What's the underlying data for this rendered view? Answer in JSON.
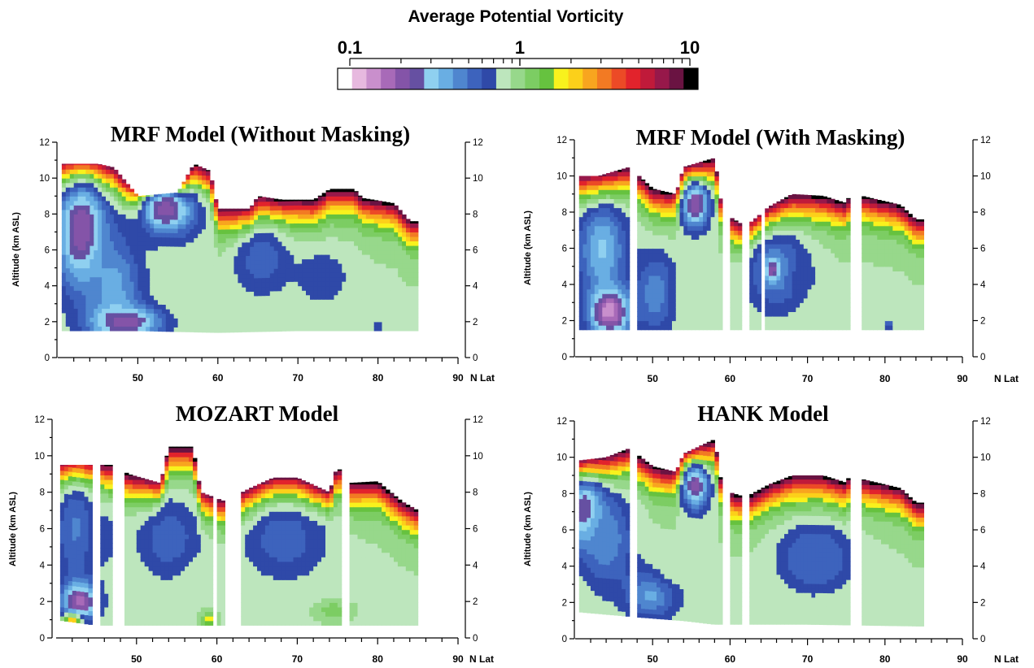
{
  "colorbar": {
    "title": "Average Potential Vorticity",
    "scale": "log",
    "tick_labels": [
      "0.1",
      "1",
      "10"
    ],
    "tick_values": [
      0.1,
      1,
      10
    ],
    "colors": [
      "#ffffff",
      "#e7b9df",
      "#c98fcc",
      "#a86ab8",
      "#8454a8",
      "#6650a2",
      "#8fd0f0",
      "#69aee3",
      "#4f86cf",
      "#3d63bd",
      "#2f49a8",
      "#bde6bd",
      "#97d88b",
      "#7ccd63",
      "#66c23f",
      "#f8f21d",
      "#fcd01a",
      "#f8a51f",
      "#f27a23",
      "#ec4a26",
      "#e2232c",
      "#c01a3a",
      "#97184a",
      "#6a1342",
      "#000000"
    ]
  },
  "chart_data": [
    {
      "type": "heatmap",
      "title": "MRF Model (Without Masking)",
      "xlabel": "N Lat",
      "ylabel": "Altitude (km ASL)",
      "xlim": [
        40,
        90
      ],
      "ylim": [
        0,
        12
      ],
      "xticks": [
        50,
        60,
        70,
        80,
        90
      ],
      "yticks": [
        0,
        2,
        4,
        6,
        8,
        10,
        12
      ],
      "legend": "none",
      "gaps": [],
      "surface": [
        [
          40,
          1.5
        ],
        [
          50,
          1.5
        ],
        [
          60,
          1.4
        ],
        [
          70,
          1.5
        ],
        [
          85,
          1.5
        ]
      ],
      "top": [
        [
          40,
          10.8
        ],
        [
          45,
          10.8
        ],
        [
          47,
          10.6
        ],
        [
          50,
          9.0
        ],
        [
          55,
          9.2
        ],
        [
          57,
          10.8
        ],
        [
          59,
          10.4
        ],
        [
          60,
          8.3
        ],
        [
          64,
          8.3
        ],
        [
          65,
          9.0
        ],
        [
          68,
          8.8
        ],
        [
          72,
          8.8
        ],
        [
          74,
          9.4
        ],
        [
          77,
          9.4
        ],
        [
          78,
          8.9
        ],
        [
          82,
          8.6
        ],
        [
          84,
          7.6
        ],
        [
          85,
          7.6
        ]
      ],
      "blobs": [
        {
          "lat": 43.0,
          "alt": 7.0,
          "rlat": 3.5,
          "ralt": 3.5,
          "pv": 0.2
        },
        {
          "lat": 47.0,
          "alt": 4.0,
          "rlat": 4.0,
          "ralt": 3.0,
          "pv": 0.4
        },
        {
          "lat": 53.5,
          "alt": 8.3,
          "rlat": 2.0,
          "ralt": 0.8,
          "pv": 0.12
        },
        {
          "lat": 53.5,
          "alt": 8.3,
          "rlat": 4.5,
          "ralt": 1.8,
          "pv": 0.25
        },
        {
          "lat": 48.5,
          "alt": 2.0,
          "rlat": 5.0,
          "ralt": 1.0,
          "pv": 0.22
        },
        {
          "lat": 65.5,
          "alt": 5.5,
          "rlat": 4.0,
          "ralt": 2.2,
          "pv": 0.55
        },
        {
          "lat": 73.0,
          "alt": 4.5,
          "rlat": 4.0,
          "ralt": 1.8,
          "pv": 0.65
        },
        {
          "lat": 59.0,
          "alt": 1.8,
          "rlat": 2.0,
          "ralt": 0.5,
          "pv": 0.85
        },
        {
          "lat": 80.0,
          "alt": 1.7,
          "rlat": 0.8,
          "ralt": 0.4,
          "pv": 0.6
        }
      ]
    },
    {
      "type": "heatmap",
      "title": "MRF Model (With Masking)",
      "xlabel": "N Lat",
      "ylabel": "Altitude (km ASL)",
      "xlim": [
        40,
        90
      ],
      "ylim": [
        0,
        12
      ],
      "xticks": [
        50,
        60,
        70,
        80,
        90
      ],
      "yticks": [
        0,
        2,
        4,
        6,
        8,
        10,
        12
      ],
      "legend": "none",
      "gaps": [
        [
          47.0,
          48.0
        ],
        [
          59.2,
          59.8
        ],
        [
          61.5,
          62.5
        ],
        [
          63.8,
          64.5
        ],
        [
          75.3,
          76.8
        ]
      ],
      "surface": [
        [
          40,
          1.5
        ],
        [
          50,
          1.5
        ],
        [
          60,
          1.5
        ],
        [
          70,
          1.5
        ],
        [
          85,
          1.5
        ]
      ],
      "top": [
        [
          40,
          10.0
        ],
        [
          43,
          10.0
        ],
        [
          47,
          10.5
        ],
        [
          50,
          9.3
        ],
        [
          53,
          9.0
        ],
        [
          54,
          10.5
        ],
        [
          58,
          11.0
        ],
        [
          59,
          8.0
        ],
        [
          62,
          7.2
        ],
        [
          65,
          8.3
        ],
        [
          68,
          9.0
        ],
        [
          72,
          8.9
        ],
        [
          75,
          8.5
        ],
        [
          76,
          9.6
        ],
        [
          77,
          8.9
        ],
        [
          82,
          8.4
        ],
        [
          84,
          7.6
        ],
        [
          85,
          7.6
        ]
      ],
      "blobs": [
        {
          "lat": 43.5,
          "alt": 6.0,
          "rlat": 3.5,
          "ralt": 3.0,
          "pv": 0.35
        },
        {
          "lat": 44.5,
          "alt": 2.5,
          "rlat": 3.0,
          "ralt": 1.5,
          "pv": 0.15
        },
        {
          "lat": 50.5,
          "alt": 3.5,
          "rlat": 3.0,
          "ralt": 2.5,
          "pv": 0.45
        },
        {
          "lat": 55.5,
          "alt": 8.5,
          "rlat": 2.0,
          "ralt": 1.5,
          "pv": 0.2
        },
        {
          "lat": 66.0,
          "alt": 4.8,
          "rlat": 4.5,
          "ralt": 2.5,
          "pv": 0.45
        },
        {
          "lat": 65.5,
          "alt": 4.8,
          "rlat": 1.0,
          "ralt": 0.7,
          "pv": 0.22
        },
        {
          "lat": 70.0,
          "alt": 4.5,
          "rlat": 2.5,
          "ralt": 1.0,
          "pv": 0.75
        },
        {
          "lat": 55.0,
          "alt": 3.0,
          "rlat": 3.0,
          "ralt": 1.5,
          "pv": 0.85
        },
        {
          "lat": 80.5,
          "alt": 1.8,
          "rlat": 0.7,
          "ralt": 0.3,
          "pv": 0.5
        }
      ]
    },
    {
      "type": "heatmap",
      "title": "MOZART Model",
      "xlabel": "N Lat",
      "ylabel": "Altitude (km ASL)",
      "xlim": [
        40,
        90
      ],
      "ylim": [
        0,
        12
      ],
      "xticks": [
        50,
        60,
        70,
        80,
        90
      ],
      "yticks": [
        0,
        2,
        4,
        6,
        8,
        10,
        12
      ],
      "legend": "none",
      "gaps": [
        [
          44.6,
          45.4
        ],
        [
          47.2,
          48.6
        ],
        [
          59.5,
          59.9
        ],
        [
          61.0,
          63.2
        ],
        [
          75.5,
          76.5
        ]
      ],
      "surface": [
        [
          40,
          1.0
        ],
        [
          45,
          0.7
        ],
        [
          50,
          0.7
        ],
        [
          60,
          0.7
        ],
        [
          70,
          0.7
        ],
        [
          85,
          0.7
        ]
      ],
      "top": [
        [
          40,
          9.5
        ],
        [
          44,
          9.5
        ],
        [
          47,
          9.5
        ],
        [
          49,
          9.0
        ],
        [
          53,
          8.5
        ],
        [
          54,
          10.5
        ],
        [
          57,
          10.5
        ],
        [
          58,
          8.0
        ],
        [
          61,
          7.5
        ],
        [
          64,
          8.2
        ],
        [
          67,
          8.8
        ],
        [
          70,
          8.8
        ],
        [
          74,
          8.0
        ],
        [
          75,
          9.5
        ],
        [
          76,
          8.5
        ],
        [
          80,
          8.6
        ],
        [
          83,
          7.5
        ],
        [
          85,
          7.0
        ]
      ],
      "blobs": [
        {
          "lat": 42.5,
          "alt": 6.0,
          "rlat": 3.0,
          "ralt": 3.5,
          "pv": 0.5
        },
        {
          "lat": 43.0,
          "alt": 2.0,
          "rlat": 2.5,
          "ralt": 1.2,
          "pv": 0.18
        },
        {
          "lat": 46.0,
          "alt": 5.5,
          "rlat": 2.5,
          "ralt": 2.0,
          "pv": 0.7
        },
        {
          "lat": 54.0,
          "alt": 5.5,
          "rlat": 4.5,
          "ralt": 2.5,
          "pv": 0.55
        },
        {
          "lat": 68.5,
          "alt": 5.5,
          "rlat": 6.0,
          "ralt": 2.5,
          "pv": 0.55
        },
        {
          "lat": 73.0,
          "alt": 6.0,
          "rlat": 1.5,
          "ralt": 1.0,
          "pv": 0.75
        },
        {
          "lat": 57.5,
          "alt": 3.0,
          "rlat": 2.0,
          "ralt": 1.0,
          "pv": 0.9
        },
        {
          "lat": 74.5,
          "alt": 1.5,
          "rlat": 2.0,
          "ralt": 0.5,
          "pv": 1.3
        },
        {
          "lat": 59.0,
          "alt": 1.0,
          "rlat": 1.0,
          "ralt": 0.4,
          "pv": 1.8
        },
        {
          "lat": 42.0,
          "alt": 1.0,
          "rlat": 1.5,
          "ralt": 0.4,
          "pv": 2.2
        }
      ]
    },
    {
      "type": "heatmap",
      "title": "HANK Model",
      "xlabel": "N Lat",
      "ylabel": "Altitude (km ASL)",
      "xlim": [
        40,
        90
      ],
      "ylim": [
        0,
        12
      ],
      "xticks": [
        50,
        60,
        70,
        80,
        90
      ],
      "yticks": [
        0,
        2,
        4,
        6,
        8,
        10,
        12
      ],
      "legend": "none",
      "gaps": [
        [
          47.0,
          48.0
        ],
        [
          59.2,
          59.8
        ],
        [
          61.5,
          62.5
        ],
        [
          75.3,
          76.8
        ]
      ],
      "surface": [
        [
          40,
          1.5
        ],
        [
          48,
          1.2
        ],
        [
          54,
          1.0
        ],
        [
          58,
          0.8
        ],
        [
          60,
          0.8
        ],
        [
          70,
          0.8
        ],
        [
          85,
          0.7
        ]
      ],
      "top": [
        [
          40,
          9.8
        ],
        [
          44,
          10.0
        ],
        [
          47,
          10.5
        ],
        [
          50,
          9.5
        ],
        [
          53,
          9.2
        ],
        [
          54,
          10.2
        ],
        [
          58,
          11.0
        ],
        [
          59,
          8.2
        ],
        [
          62,
          7.8
        ],
        [
          65,
          8.5
        ],
        [
          68,
          9.0
        ],
        [
          72,
          9.0
        ],
        [
          75,
          8.6
        ],
        [
          76,
          9.6
        ],
        [
          77,
          8.8
        ],
        [
          82,
          8.3
        ],
        [
          84,
          7.5
        ],
        [
          85,
          7.5
        ]
      ],
      "blobs": [
        {
          "lat": 41.5,
          "alt": 7.0,
          "rlat": 2.5,
          "ralt": 2.0,
          "pv": 0.18
        },
        {
          "lat": 44.0,
          "alt": 5.5,
          "rlat": 4.0,
          "ralt": 3.0,
          "pv": 0.45
        },
        {
          "lat": 50.0,
          "alt": 2.5,
          "rlat": 4.0,
          "ralt": 1.5,
          "pv": 0.4
        },
        {
          "lat": 55.5,
          "alt": 8.5,
          "rlat": 2.0,
          "ralt": 1.5,
          "pv": 0.22
        },
        {
          "lat": 71.0,
          "alt": 4.5,
          "rlat": 5.0,
          "ralt": 2.0,
          "pv": 0.45
        },
        {
          "lat": 71.5,
          "alt": 4.3,
          "rlat": 2.5,
          "ralt": 1.0,
          "pv": 0.6
        },
        {
          "lat": 53.0,
          "alt": 4.5,
          "rlat": 3.0,
          "ralt": 2.0,
          "pv": 0.9
        }
      ]
    }
  ]
}
